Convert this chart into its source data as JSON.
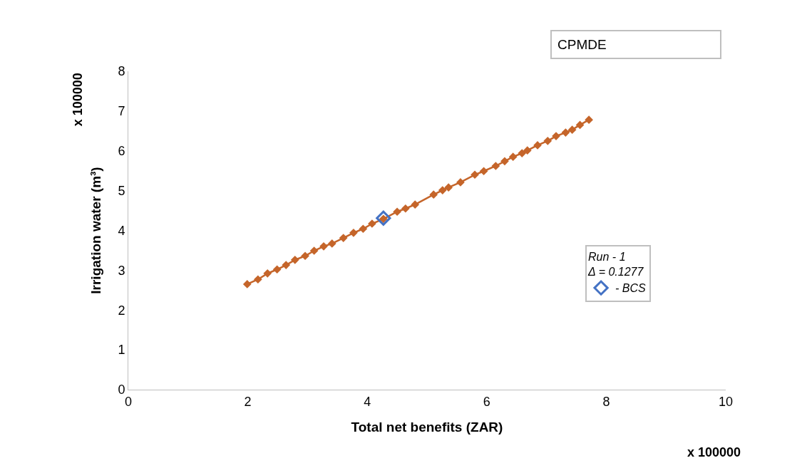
{
  "chart_data": {
    "type": "line",
    "xlabel": "Total net benefits (ZAR)",
    "ylabel": "Irrigation water (m³)",
    "legend_title": "Run - 1\nΔ = 0.1277",
    "legend": "right",
    "xlim": [
      0,
      10
    ],
    "xticks": [
      0,
      2,
      4,
      6,
      8,
      10
    ],
    "ylim": [
      0,
      8
    ],
    "yticks": [
      0,
      1,
      2,
      3,
      4,
      5,
      6,
      7,
      8
    ],
    "annotations": [
      "CPMDE",
      "x 100000",
      "x 100000"
    ],
    "series": [
      {
        "marker": "diamond",
        "color": "#c5652a",
        "x": [
          1.99,
          2.17,
          2.33,
          2.49,
          2.64,
          2.79,
          2.96,
          3.11,
          3.27,
          3.41,
          3.6,
          3.77,
          3.93,
          4.08,
          4.27,
          4.5,
          4.64,
          4.8,
          5.11,
          5.26,
          5.36,
          5.56,
          5.8,
          5.95,
          6.15,
          6.3,
          6.44,
          6.59,
          6.68,
          6.85,
          7.02,
          7.16,
          7.32,
          7.43,
          7.56,
          7.71
        ],
        "values": [
          2.65,
          2.77,
          2.92,
          3.02,
          3.13,
          3.26,
          3.36,
          3.49,
          3.6,
          3.67,
          3.81,
          3.94,
          4.04,
          4.17,
          4.29,
          4.47,
          4.55,
          4.65,
          4.9,
          5.01,
          5.08,
          5.21,
          5.4,
          5.49,
          5.62,
          5.74,
          5.85,
          5.94,
          6.01,
          6.14,
          6.25,
          6.37,
          6.46,
          6.53,
          6.65,
          6.78
        ]
      },
      {
        "type": "scatter",
        "name": "- BCS",
        "marker": "diamond-open",
        "color": "#4472c4",
        "x": [
          4.27
        ],
        "values": [
          4.31
        ]
      }
    ]
  }
}
